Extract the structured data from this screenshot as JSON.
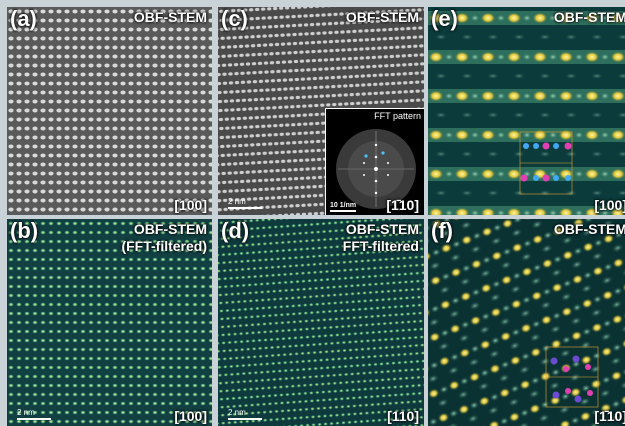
{
  "panels": {
    "a": {
      "letter": "(a)",
      "mode": "OBF-STEM",
      "zone": "[100]"
    },
    "b": {
      "letter": "(b)",
      "mode": "OBF-STEM",
      "sub": "(FFT-filtered)",
      "zone": "[100]",
      "scale": "2 nm"
    },
    "c": {
      "letter": "(c)",
      "mode": "OBF-STEM",
      "zone": "[1̄10]",
      "scale": "2 nm",
      "fft": {
        "title": "FFT pattern",
        "scale": "10 1/nm"
      }
    },
    "d": {
      "letter": "(d)",
      "mode": "OBF-STEM",
      "sub": "FFT-filtered",
      "zone": "[110]",
      "scale": "2 nm"
    },
    "e": {
      "letter": "(e)",
      "mode": "OBF-STEM",
      "zone": "[100]"
    },
    "f": {
      "letter": "(f)",
      "mode": "OBF-STEM",
      "zone": "[1̄10]"
    }
  }
}
